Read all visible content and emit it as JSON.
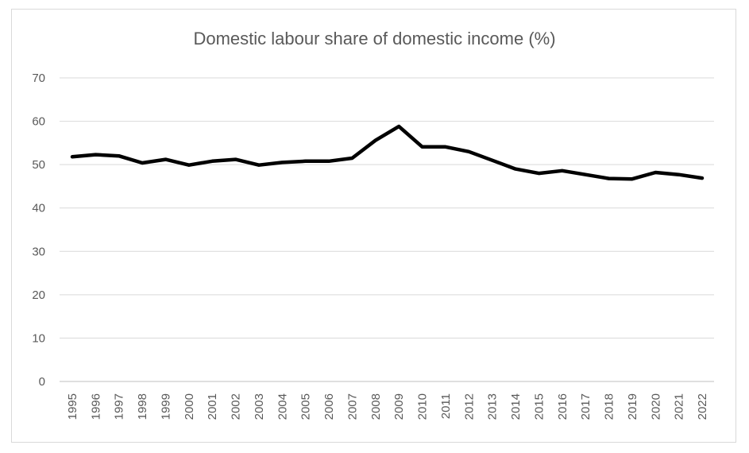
{
  "chart_data": {
    "type": "line",
    "title": "Domestic labour share of domestic income (%)",
    "xlabel": "",
    "ylabel": "",
    "ylim": [
      0,
      70
    ],
    "yticks": [
      0,
      10,
      20,
      30,
      40,
      50,
      60,
      70
    ],
    "grid": true,
    "legend": "none",
    "categories": [
      "1995",
      "1996",
      "1997",
      "1998",
      "1999",
      "2000",
      "2001",
      "2002",
      "2003",
      "2004",
      "2005",
      "2006",
      "2007",
      "2008",
      "2009",
      "2010",
      "2011",
      "2012",
      "2013",
      "2014",
      "2015",
      "2016",
      "2017",
      "2018",
      "2019",
      "2020",
      "2021",
      "2022"
    ],
    "series": [
      {
        "values": [
          51.8,
          52.3,
          52.0,
          50.4,
          51.2,
          49.9,
          50.8,
          51.2,
          49.9,
          50.5,
          50.8,
          50.8,
          51.5,
          55.6,
          58.8,
          54.1,
          54.1,
          53.0,
          51.0,
          49.0,
          48.0,
          48.6,
          47.7,
          46.8,
          46.7,
          48.2,
          47.7,
          46.9
        ],
        "color": "#000000"
      }
    ],
    "colors": {
      "line": "#000000",
      "grid": "#d9d9d9",
      "text": "#595959"
    }
  }
}
